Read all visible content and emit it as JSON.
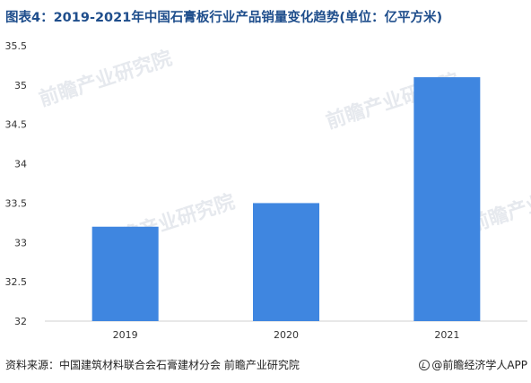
{
  "title": "图表4：2019-2021年中国石膏板行业产品销量变化趋势(单位：亿平方米)",
  "source": "资料来源：中国建筑材料联合会石膏建材分会 前瞻产业研究院",
  "brand": "@前瞻经济学人APP",
  "watermark": "前瞻产业研究院",
  "colors": {
    "bar": "#3f86e0",
    "axis": "#d0d0d0",
    "text": "#333333",
    "title": "#1f4e8c"
  },
  "chart_data": {
    "type": "bar",
    "categories": [
      "2019",
      "2020",
      "2021"
    ],
    "values": [
      33.2,
      33.5,
      35.1
    ],
    "ylim": [
      32,
      35.5
    ],
    "yticks": [
      "32",
      "32.5",
      "33",
      "33.5",
      "34",
      "34.5",
      "35",
      "35.5"
    ],
    "grid": false
  }
}
